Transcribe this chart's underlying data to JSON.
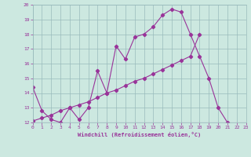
{
  "xlabel": "Windchill (Refroidissement éolien,°C)",
  "bg_color": "#cce8e0",
  "line_color": "#993399",
  "grid_color": "#99bbbb",
  "x_min": 0,
  "x_max": 23,
  "y_min": 12,
  "y_max": 20,
  "line1_x": [
    0,
    1,
    2,
    3,
    4,
    5,
    6,
    7,
    8,
    9,
    10,
    11,
    12,
    13,
    14,
    15,
    16,
    17,
    18,
    19,
    20,
    21
  ],
  "line1_y": [
    14.4,
    12.8,
    12.2,
    12.0,
    13.0,
    12.2,
    13.0,
    15.5,
    14.0,
    17.2,
    16.3,
    17.8,
    18.0,
    18.5,
    19.3,
    19.7,
    19.5,
    18.0,
    16.5,
    15.0,
    13.0,
    12.0
  ],
  "line2_x": [
    0,
    1,
    2,
    3,
    4,
    5,
    6,
    7,
    8,
    9,
    10,
    11,
    12,
    13,
    14,
    15,
    16,
    17,
    18
  ],
  "line2_y": [
    12.1,
    12.3,
    12.5,
    12.8,
    13.0,
    13.2,
    13.4,
    13.7,
    14.0,
    14.2,
    14.5,
    14.8,
    15.0,
    15.3,
    15.6,
    15.9,
    16.2,
    16.5,
    18.0
  ],
  "line3_x": [
    0,
    23
  ],
  "line3_y": [
    12.0,
    12.0
  ],
  "yticks": [
    12,
    13,
    14,
    15,
    16,
    17,
    18,
    19,
    20
  ],
  "xticks": [
    0,
    1,
    2,
    3,
    4,
    5,
    6,
    7,
    8,
    9,
    10,
    11,
    12,
    13,
    14,
    15,
    16,
    17,
    18,
    19,
    20,
    21,
    22,
    23
  ]
}
